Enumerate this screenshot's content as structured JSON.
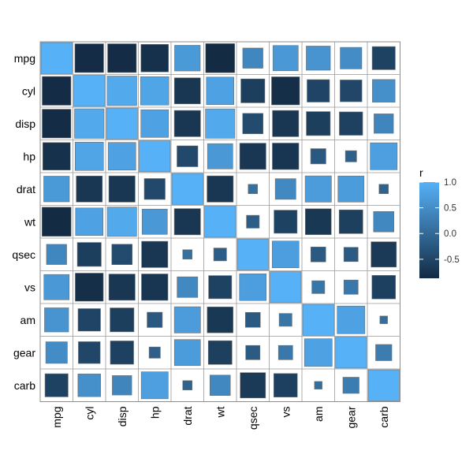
{
  "chart_data": {
    "type": "heatmap",
    "variables": [
      "mpg",
      "cyl",
      "disp",
      "hp",
      "drat",
      "wt",
      "qsec",
      "vs",
      "am",
      "gear",
      "carb"
    ],
    "matrix": [
      [
        1.0,
        -0.85,
        -0.85,
        -0.78,
        0.68,
        -0.87,
        0.42,
        0.66,
        0.6,
        0.48,
        -0.55
      ],
      [
        -0.85,
        1.0,
        0.9,
        0.83,
        -0.7,
        0.78,
        -0.59,
        -0.81,
        -0.52,
        -0.49,
        0.53
      ],
      [
        -0.85,
        0.9,
        1.0,
        0.79,
        -0.71,
        0.89,
        -0.43,
        -0.71,
        -0.59,
        -0.56,
        0.39
      ],
      [
        -0.78,
        0.83,
        0.79,
        1.0,
        -0.45,
        0.66,
        -0.71,
        -0.72,
        -0.24,
        -0.13,
        0.75
      ],
      [
        0.68,
        -0.7,
        -0.71,
        -0.45,
        1.0,
        -0.71,
        0.09,
        0.44,
        0.71,
        0.7,
        -0.09
      ],
      [
        -0.87,
        0.78,
        0.89,
        0.66,
        -0.71,
        1.0,
        -0.17,
        -0.55,
        -0.69,
        -0.58,
        0.43
      ],
      [
        0.42,
        -0.59,
        -0.43,
        -0.71,
        0.09,
        -0.17,
        1.0,
        0.74,
        -0.23,
        -0.21,
        -0.66
      ],
      [
        0.66,
        -0.81,
        -0.71,
        -0.72,
        0.44,
        -0.55,
        0.74,
        1.0,
        0.17,
        0.21,
        -0.57
      ],
      [
        0.6,
        -0.52,
        -0.59,
        -0.24,
        0.71,
        -0.69,
        -0.23,
        0.17,
        1.0,
        0.79,
        0.06
      ],
      [
        0.48,
        -0.49,
        -0.56,
        -0.13,
        0.7,
        -0.58,
        -0.21,
        0.21,
        0.79,
        1.0,
        0.27
      ],
      [
        -0.55,
        0.53,
        0.39,
        0.75,
        -0.09,
        0.43,
        -0.66,
        -0.57,
        0.06,
        0.27,
        1.0
      ]
    ],
    "legend": {
      "title": "r",
      "ticks": [
        1.0,
        0.5,
        0.0,
        -0.5
      ],
      "tick_labels": [
        "1.0",
        "0.5",
        "0.0",
        "-0.5"
      ],
      "range": [
        -0.87,
        1.0
      ],
      "placement": "right",
      "color_low": "#132B43",
      "color_high": "#56B1F7"
    },
    "cell_size_encodes": "abs(r)"
  }
}
